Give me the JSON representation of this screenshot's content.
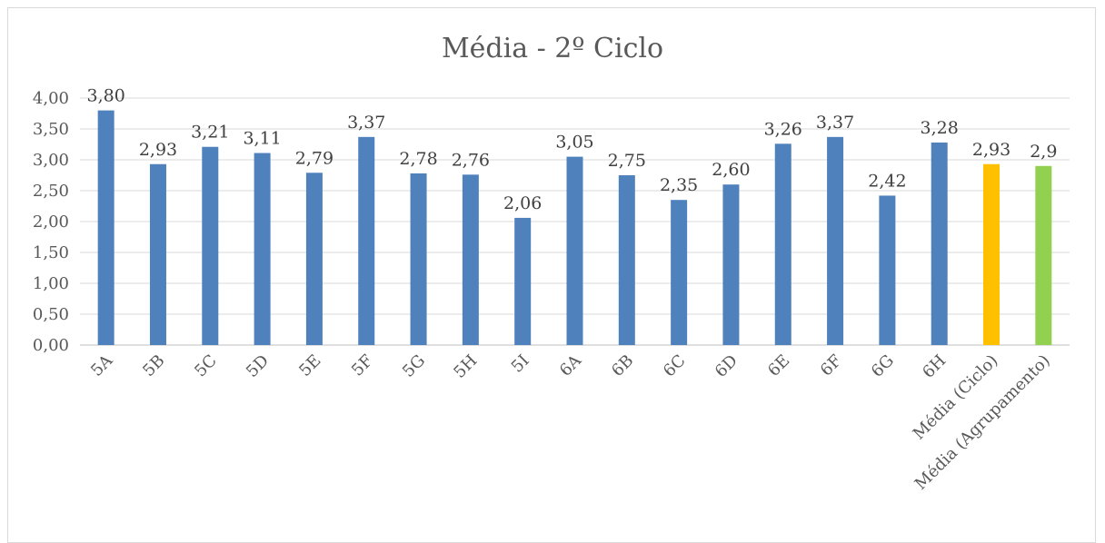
{
  "chart_data": {
    "type": "bar",
    "title": "Média - 2º Ciclo",
    "xlabel": "",
    "ylabel": "",
    "ylim": [
      0,
      4
    ],
    "yticks": [
      "0,00",
      "0,50",
      "1,00",
      "1,50",
      "2,00",
      "2,50",
      "3,00",
      "3,50",
      "4,00"
    ],
    "grid": true,
    "legend": "none",
    "categories": [
      "5A",
      "5B",
      "5C",
      "5D",
      "5E",
      "5F",
      "5G",
      "5H",
      "5I",
      "6A",
      "6B",
      "6C",
      "6D",
      "6E",
      "6F",
      "6G",
      "6H",
      "Média (Ciclo)",
      "Média (Agrupamento)"
    ],
    "values": [
      3.8,
      2.93,
      3.21,
      3.11,
      2.79,
      3.37,
      2.78,
      2.76,
      2.06,
      3.05,
      2.75,
      2.35,
      2.6,
      3.26,
      3.37,
      2.42,
      3.28,
      2.93,
      2.9
    ],
    "data_labels": [
      "3,80",
      "2,93",
      "3,21",
      "3,11",
      "2,79",
      "3,37",
      "2,78",
      "2,76",
      "2,06",
      "3,05",
      "2,75",
      "2,35",
      "2,60",
      "3,26",
      "3,37",
      "2,42",
      "3,28",
      "2,93",
      "2,9"
    ],
    "colors": [
      "#4f81bd",
      "#4f81bd",
      "#4f81bd",
      "#4f81bd",
      "#4f81bd",
      "#4f81bd",
      "#4f81bd",
      "#4f81bd",
      "#4f81bd",
      "#4f81bd",
      "#4f81bd",
      "#4f81bd",
      "#4f81bd",
      "#4f81bd",
      "#4f81bd",
      "#4f81bd",
      "#4f81bd",
      "#ffc000",
      "#92d050"
    ]
  }
}
